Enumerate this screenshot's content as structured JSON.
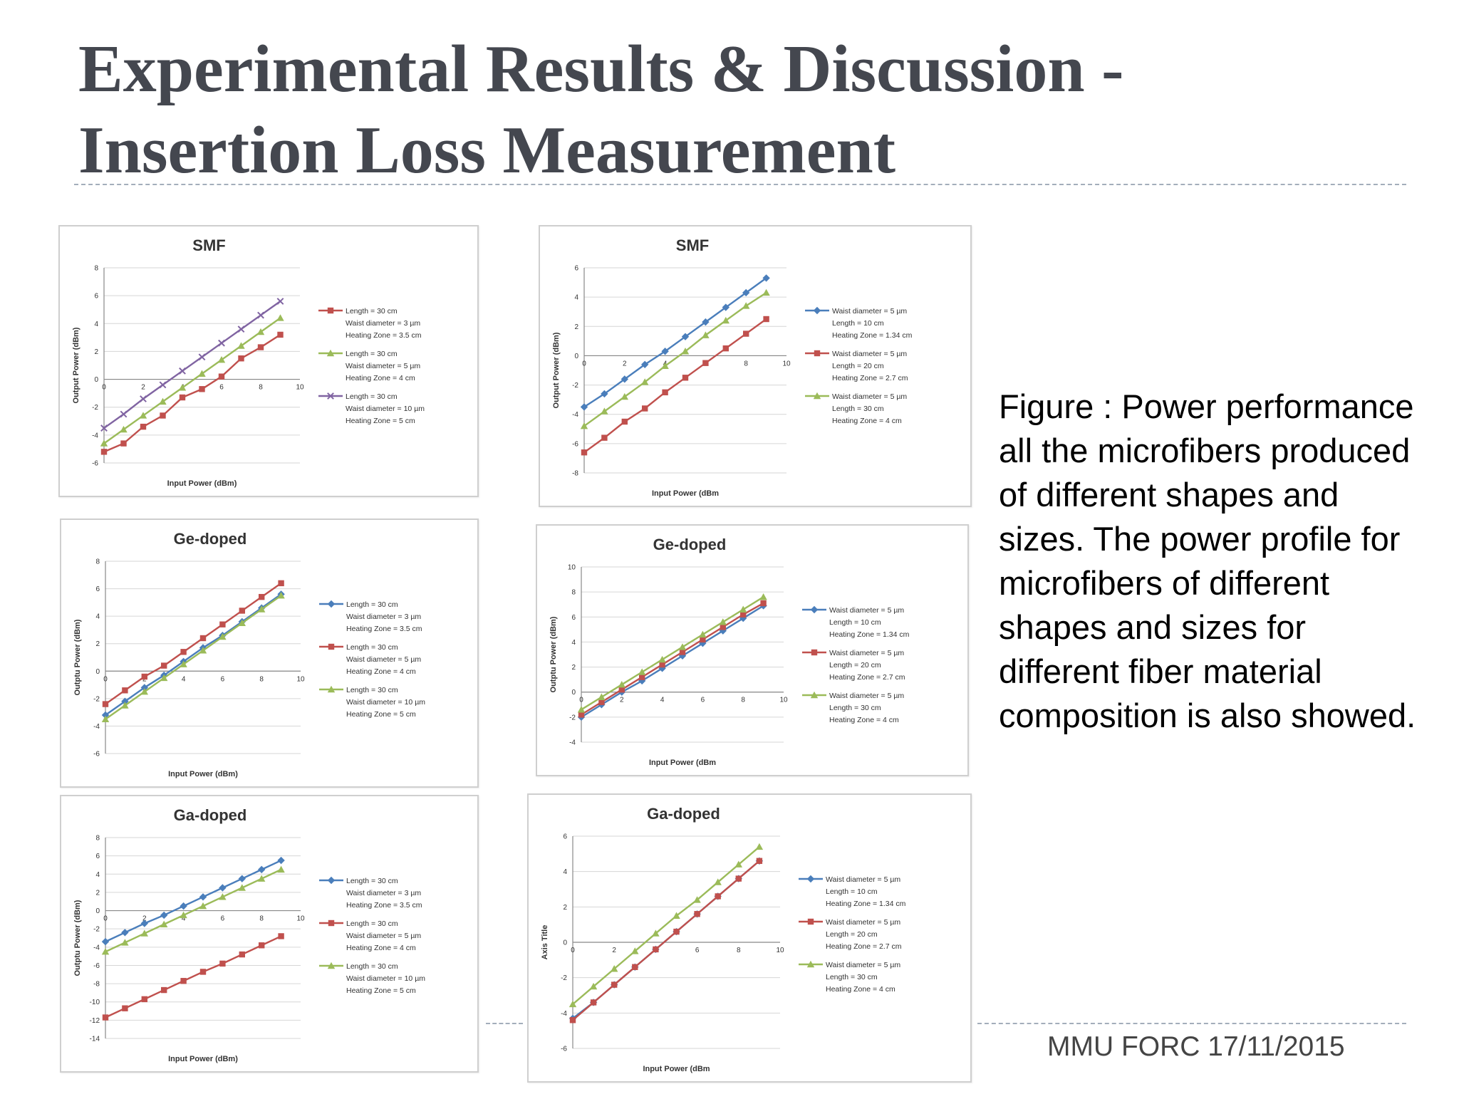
{
  "slide": {
    "title_line1": "Experimental Results & Discussion -",
    "title_line2": "Insertion Loss Measurement",
    "caption": "Figure : Power performance all the microfibers produced of different shapes and sizes. The power profile for microfibers of different shapes and sizes  for different fiber material composition is also showed.",
    "footer": "MMU FORC 17/11/2015"
  },
  "colors": {
    "blue": "#4a7ebb",
    "red": "#c0504d",
    "green": "#9bbb59",
    "purple": "#8064a2"
  },
  "chart_data": [
    {
      "type": "line",
      "title": "SMF",
      "xlabel": "Input Power (dBm)",
      "ylabel": "Output Power (dBm)",
      "xlim": [
        0,
        10
      ],
      "ylim": [
        -6,
        8
      ],
      "xticks": [
        "0",
        "2",
        "4",
        "6",
        "8",
        "10"
      ],
      "yticks": [
        "8",
        "6",
        "4",
        "2",
        "0",
        "-2",
        "-4",
        "-6"
      ],
      "x": [
        0,
        1,
        2,
        3,
        4,
        5,
        6,
        7,
        8,
        9
      ],
      "series": [
        {
          "color": "red",
          "marker": "square",
          "legend": [
            "Length = 30 cm",
            "Waist diameter = 3 µm",
            "Heating Zone = 3.5 cm"
          ],
          "values": [
            -5.2,
            -4.6,
            -3.4,
            -2.6,
            -1.3,
            -0.7,
            0.2,
            1.5,
            2.3,
            3.2
          ]
        },
        {
          "color": "green",
          "marker": "triangle",
          "legend": [
            "Length = 30 cm",
            "Waist diameter = 5 µm",
            "Heating Zone = 4 cm"
          ],
          "values": [
            -4.6,
            -3.6,
            -2.6,
            -1.6,
            -0.6,
            0.4,
            1.4,
            2.4,
            3.4,
            4.4
          ]
        },
        {
          "color": "purple",
          "marker": "cross",
          "legend": [
            "Length = 30 cm",
            "Waist diameter = 10 µm",
            "Heating Zone = 5 cm"
          ],
          "values": [
            -3.5,
            -2.5,
            -1.4,
            -0.4,
            0.6,
            1.6,
            2.6,
            3.6,
            4.6,
            5.6
          ]
        }
      ]
    },
    {
      "type": "line",
      "title": "SMF",
      "xlabel": "Input Power (dBm",
      "ylabel": "Output Power (dBm)",
      "xlim": [
        0,
        10
      ],
      "ylim": [
        -8,
        6
      ],
      "xticks": [
        "0",
        "2",
        "4",
        "6",
        "8",
        "10"
      ],
      "yticks": [
        "6",
        "4",
        "2",
        "0",
        "-2",
        "-4",
        "-6",
        "-8"
      ],
      "x": [
        0,
        1,
        2,
        3,
        4,
        5,
        6,
        7,
        8,
        9
      ],
      "series": [
        {
          "color": "blue",
          "marker": "diamond",
          "legend": [
            "Waist diameter = 5 µm",
            "Length = 10 cm",
            "Heating Zone = 1.34 cm"
          ],
          "values": [
            -3.5,
            -2.6,
            -1.6,
            -0.6,
            0.3,
            1.3,
            2.3,
            3.3,
            4.3,
            5.3
          ]
        },
        {
          "color": "red",
          "marker": "square",
          "legend": [
            "Waist diameter = 5 µm",
            "Length = 20 cm",
            "Heating Zone = 2.7 cm"
          ],
          "values": [
            -6.6,
            -5.6,
            -4.5,
            -3.6,
            -2.5,
            -1.5,
            -0.5,
            0.5,
            1.5,
            2.5
          ]
        },
        {
          "color": "green",
          "marker": "triangle",
          "legend": [
            "Waist diameter = 5 µm",
            "Length = 30 cm",
            "Heating Zone = 4 cm"
          ],
          "values": [
            -4.8,
            -3.8,
            -2.8,
            -1.8,
            -0.7,
            0.3,
            1.4,
            2.4,
            3.4,
            4.3
          ]
        }
      ]
    },
    {
      "type": "line",
      "title": "Ge-doped",
      "xlabel": "Input Power (dBm)",
      "ylabel": "Outptu Power (dBm)",
      "xlim": [
        0,
        10
      ],
      "ylim": [
        -6,
        8
      ],
      "xticks": [
        "0",
        "2",
        "4",
        "6",
        "8",
        "10"
      ],
      "yticks": [
        "8",
        "6",
        "4",
        "2",
        "0",
        "-2",
        "-4",
        "-6"
      ],
      "x": [
        0,
        1,
        2,
        3,
        4,
        5,
        6,
        7,
        8,
        9
      ],
      "series": [
        {
          "color": "blue",
          "marker": "diamond",
          "legend": [
            "Length = 30 cm",
            "Waist diameter = 3 µm",
            "Heating Zone = 3.5 cm"
          ],
          "values": [
            -3.2,
            -2.2,
            -1.2,
            -0.3,
            0.7,
            1.7,
            2.6,
            3.6,
            4.6,
            5.6
          ]
        },
        {
          "color": "red",
          "marker": "square",
          "legend": [
            "Length = 30 cm",
            "Waist diameter = 5 µm",
            "Heating Zone = 4 cm"
          ],
          "values": [
            -2.4,
            -1.4,
            -0.4,
            0.4,
            1.4,
            2.4,
            3.4,
            4.4,
            5.4,
            6.4
          ]
        },
        {
          "color": "green",
          "marker": "triangle",
          "legend": [
            "Length = 30 cm",
            "Waist diameter = 10 µm",
            "Heating Zone = 5 cm"
          ],
          "values": [
            -3.5,
            -2.5,
            -1.5,
            -0.5,
            0.5,
            1.5,
            2.5,
            3.5,
            4.5,
            5.5
          ]
        }
      ]
    },
    {
      "type": "line",
      "title": "Ge-doped",
      "xlabel": "Input Power (dBm",
      "ylabel": "Outptu Power (dBm)",
      "xlim": [
        0,
        10
      ],
      "ylim": [
        -4,
        10
      ],
      "xticks": [
        "0",
        "2",
        "4",
        "6",
        "8",
        "10"
      ],
      "yticks": [
        "10",
        "8",
        "6",
        "4",
        "2",
        "0",
        "-2",
        "-4"
      ],
      "x": [
        0,
        1,
        2,
        3,
        4,
        5,
        6,
        7,
        8,
        9
      ],
      "series": [
        {
          "color": "blue",
          "marker": "diamond",
          "legend": [
            "Waist diameter = 5 µm",
            "Length = 10 cm",
            "Heating Zone = 1.34 cm"
          ],
          "values": [
            -2.0,
            -1.0,
            0.0,
            0.9,
            1.9,
            2.9,
            3.9,
            4.9,
            5.9,
            6.9
          ]
        },
        {
          "color": "red",
          "marker": "square",
          "legend": [
            "Waist diameter = 5 µm",
            "Length = 20 cm",
            "Heating Zone = 2.7 cm"
          ],
          "values": [
            -1.8,
            -0.8,
            0.2,
            1.2,
            2.2,
            3.2,
            4.2,
            5.2,
            6.2,
            7.1
          ]
        },
        {
          "color": "green",
          "marker": "triangle",
          "legend": [
            "Waist diameter = 5 µm",
            "Length = 30 cm",
            "Heating Zone = 4 cm"
          ],
          "values": [
            -1.4,
            -0.4,
            0.6,
            1.6,
            2.6,
            3.6,
            4.6,
            5.6,
            6.6,
            7.6
          ]
        }
      ]
    },
    {
      "type": "line",
      "title": "Ga-doped",
      "xlabel": "Input Power (dBm)",
      "ylabel": "Outptu Power (dBm)",
      "xlim": [
        0,
        10
      ],
      "ylim": [
        -14,
        8
      ],
      "xticks": [
        "0",
        "2",
        "4",
        "6",
        "8",
        "10"
      ],
      "yticks": [
        "8",
        "6",
        "4",
        "2",
        "0",
        "-2",
        "-4",
        "-6",
        "-8",
        "-10",
        "-12",
        "-14"
      ],
      "x": [
        0,
        1,
        2,
        3,
        4,
        5,
        6,
        7,
        8,
        9
      ],
      "series": [
        {
          "color": "blue",
          "marker": "diamond",
          "legend": [
            "Length = 30 cm",
            "Waist diameter = 3 µm",
            "Heating Zone = 3.5 cm"
          ],
          "values": [
            -3.4,
            -2.4,
            -1.4,
            -0.5,
            0.5,
            1.5,
            2.5,
            3.5,
            4.5,
            5.5
          ]
        },
        {
          "color": "red",
          "marker": "square",
          "legend": [
            "Length = 30 cm",
            "Waist diameter = 5 µm",
            "Heating Zone = 4 cm"
          ],
          "values": [
            -11.7,
            -10.7,
            -9.7,
            -8.7,
            -7.7,
            -6.7,
            -5.8,
            -4.8,
            -3.8,
            -2.8
          ]
        },
        {
          "color": "green",
          "marker": "triangle",
          "legend": [
            "Length = 30 cm",
            "Waist diameter = 10 µm",
            "Heating Zone = 5 cm"
          ],
          "values": [
            -4.5,
            -3.5,
            -2.5,
            -1.5,
            -0.5,
            0.5,
            1.5,
            2.5,
            3.5,
            4.5
          ]
        }
      ]
    },
    {
      "type": "line",
      "title": "Ga-doped",
      "xlabel": "Input Power (dBm",
      "ylabel": "Axis Title",
      "xlim": [
        0,
        10
      ],
      "ylim": [
        -6,
        6
      ],
      "xticks": [
        "0",
        "2",
        "4",
        "6",
        "8",
        "10"
      ],
      "yticks": [
        "6",
        "4",
        "2",
        "0",
        "-2",
        "-4",
        "-6"
      ],
      "x": [
        0,
        1,
        2,
        3,
        4,
        5,
        6,
        7,
        8,
        9
      ],
      "series": [
        {
          "color": "blue",
          "marker": "diamond",
          "legend": [
            "Waist diameter = 5 µm",
            "Length = 10 cm",
            "Heating Zone = 1.34 cm"
          ],
          "values": [
            -4.3,
            -3.4,
            -2.4,
            -1.4,
            -0.4,
            0.6,
            1.6,
            2.6,
            3.6,
            4.6
          ]
        },
        {
          "color": "red",
          "marker": "square",
          "legend": [
            "Waist diameter = 5 µm",
            "Length = 20 cm",
            "Heating Zone = 2.7 cm"
          ],
          "values": [
            -4.4,
            -3.4,
            -2.4,
            -1.4,
            -0.4,
            0.6,
            1.6,
            2.6,
            3.6,
            4.6
          ]
        },
        {
          "color": "green",
          "marker": "triangle",
          "legend": [
            "Waist diameter = 5 µm",
            "Length = 30 cm",
            "Heating Zone = 4 cm"
          ],
          "values": [
            -3.5,
            -2.5,
            -1.5,
            -0.5,
            0.5,
            1.5,
            2.4,
            3.4,
            4.4,
            5.4
          ]
        }
      ]
    }
  ]
}
